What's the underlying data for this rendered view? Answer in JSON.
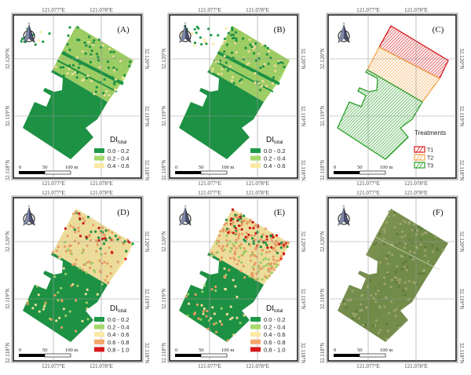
{
  "axes": {
    "lon_ticks": [
      "121.077°E",
      "121.078°E"
    ],
    "lat_ticks": [
      "32.120°N",
      "32.119°N",
      "32.118°N"
    ]
  },
  "scale_bar": {
    "labels": [
      "0",
      "50",
      "100 m"
    ]
  },
  "colors": {
    "c1": "#1f9a48",
    "c2": "#a6d96a",
    "c3": "#fbe9a4",
    "c4": "#f4a66a",
    "c5": "#d7191c",
    "t1": "#d7191c",
    "t2": "#f4a64a",
    "t3": "#2ca02c"
  },
  "legend_title": {
    "main": "DI",
    "sub": "total"
  },
  "panels": [
    {
      "label": "(A)",
      "kind": "di3",
      "legend": [
        "0.0 - 0.2",
        "0.2 - 0.4",
        "0.4 - 0.6"
      ]
    },
    {
      "label": "(B)",
      "kind": "di3b",
      "legend": [
        "0.0 - 0.2",
        "0.2 - 0.4",
        "0.4 - 0.6"
      ]
    },
    {
      "label": "(C)",
      "kind": "treat",
      "legend_title": "Treatments",
      "legend": [
        "T1",
        "T2",
        "T3"
      ]
    },
    {
      "label": "(D)",
      "kind": "di5",
      "legend": [
        "0.0 - 0.2",
        "0.2 - 0.4",
        "0.4 - 0.6",
        "0.6 - 0.8",
        "0.8 - 1.0"
      ]
    },
    {
      "label": "(E)",
      "kind": "di5b",
      "legend": [
        "0.0 - 0.2",
        "0.2 - 0.4",
        "0.4 - 0.6",
        "0.6 - 0.8",
        "0.8 - 1.0"
      ]
    },
    {
      "label": "(F)",
      "kind": "photo",
      "legend": []
    }
  ]
}
